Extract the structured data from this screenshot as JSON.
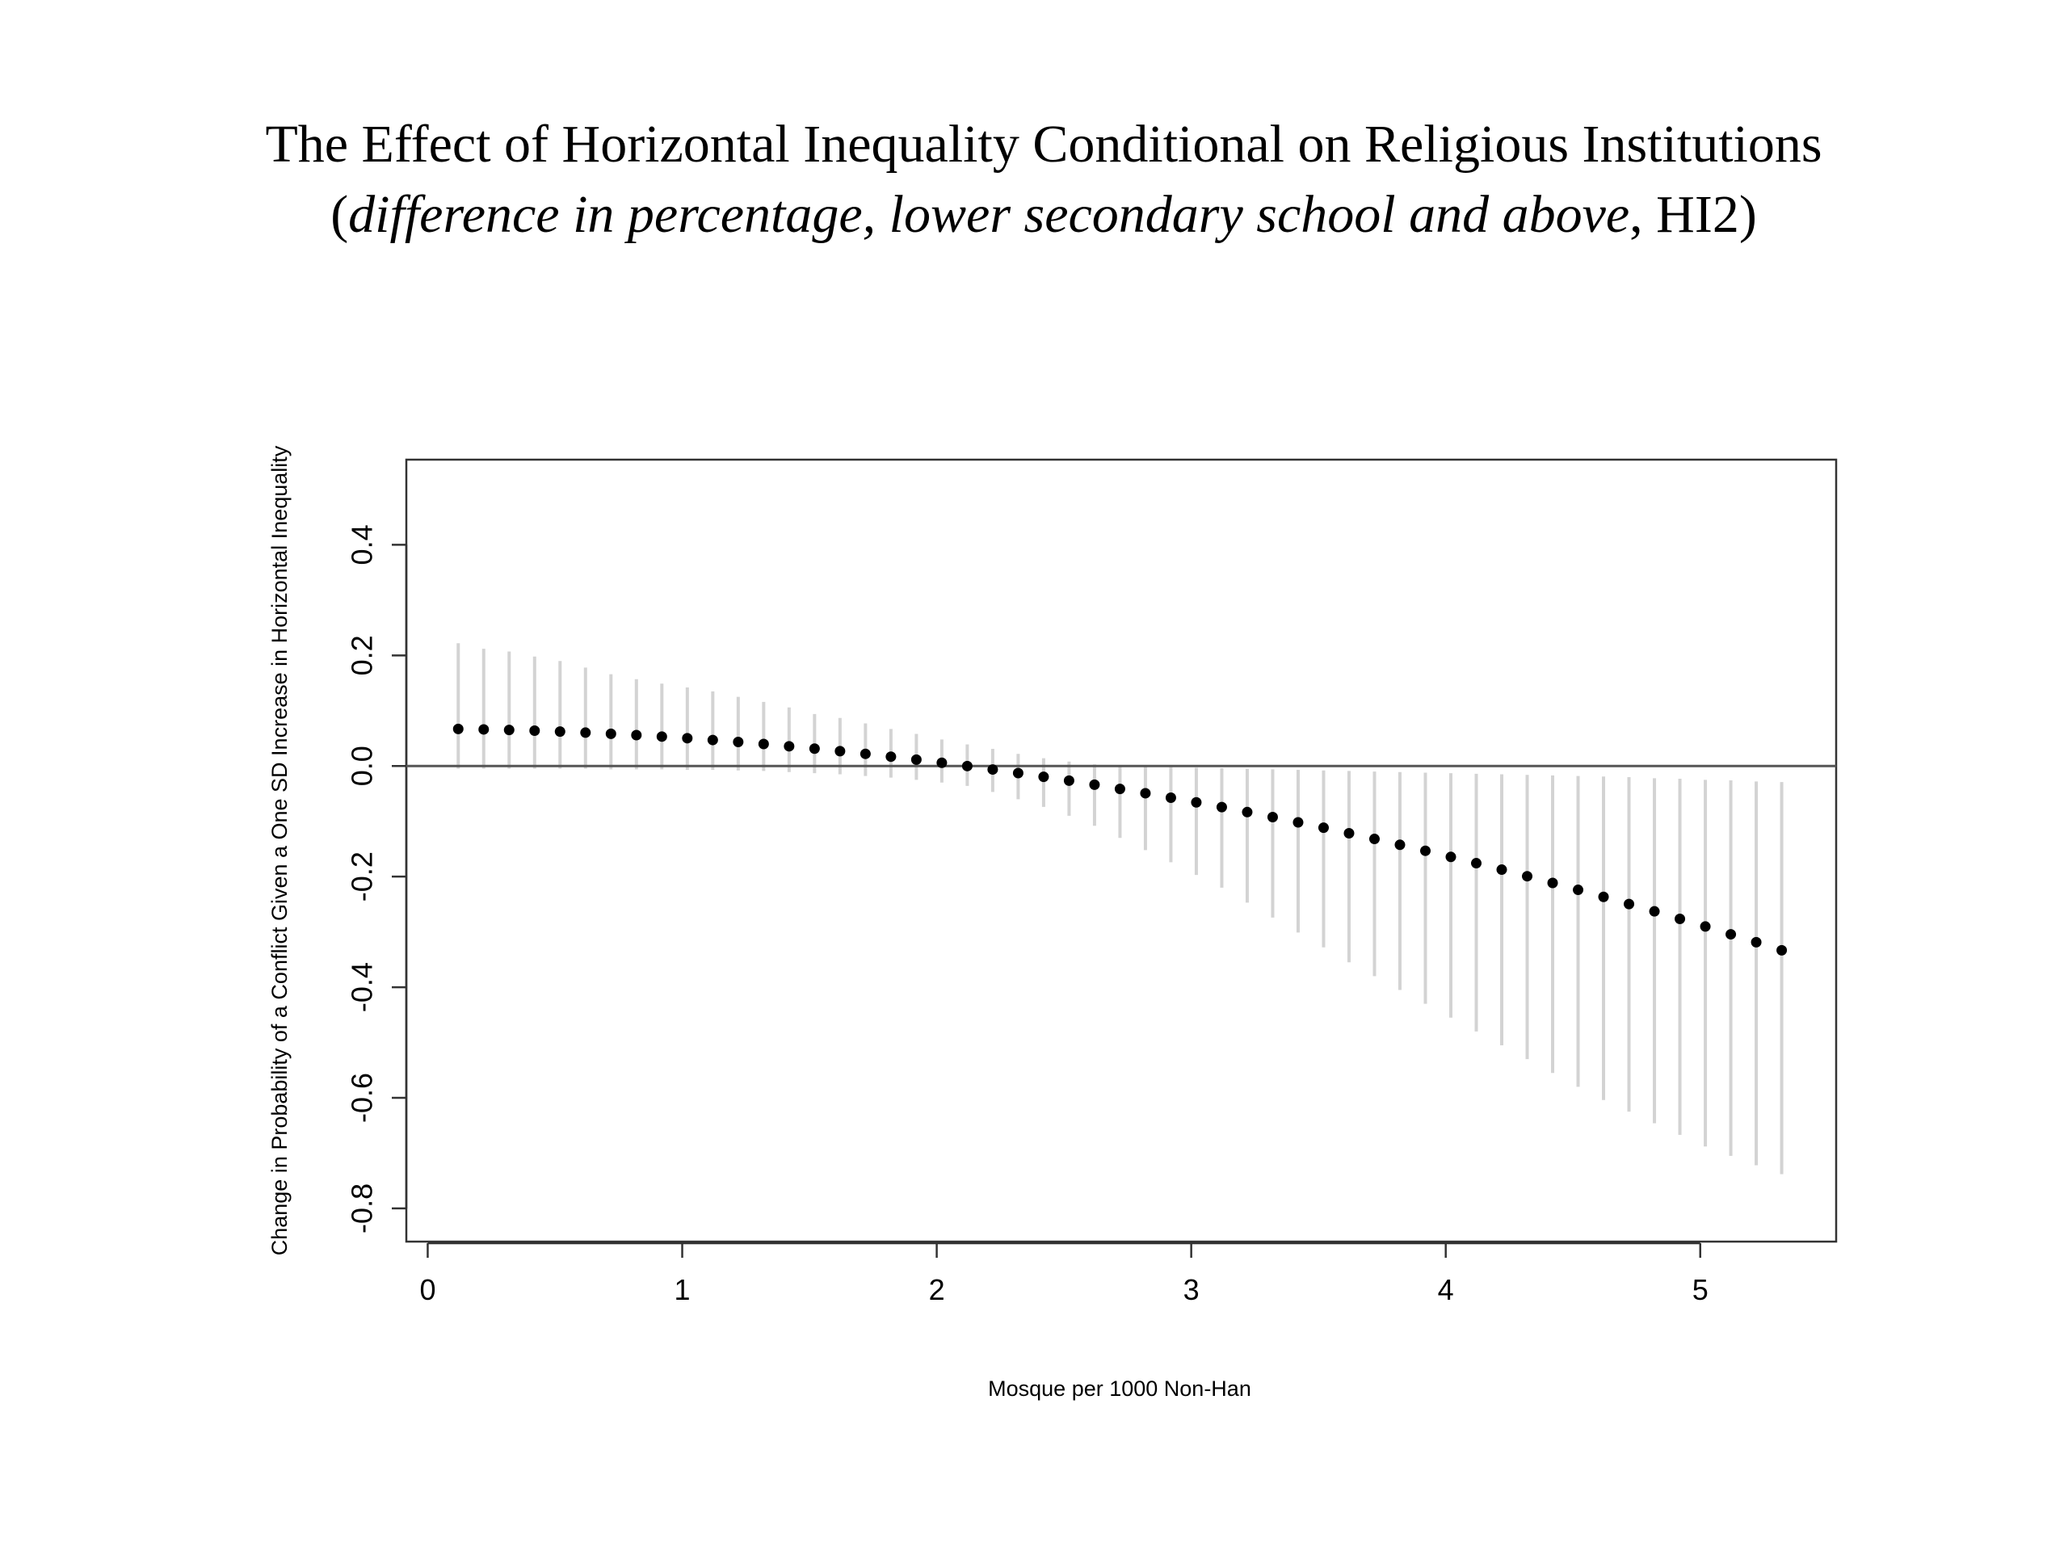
{
  "chart_data": {
    "type": "errorbar",
    "title": "The Effect of Horizontal Inequality Conditional on Religious Institutions",
    "subtitle": [
      "(",
      "difference in percentage, lower secondary school and above",
      ", HI2)"
    ],
    "x_label": "Mosque per 1000 Non-Han",
    "y_label": "Change in Probability of a Conflict Given a One SD Increase in Horizontal Inequality",
    "point_color": "#000000",
    "bar_color": "#d3d3d3",
    "reference_line": 0,
    "xlim": [
      -0.084,
      5.534
    ],
    "ylim": [
      -0.86,
      0.554
    ],
    "xticks": [
      0,
      1,
      2,
      3,
      4,
      5
    ],
    "yticks": [
      -0.8,
      -0.6,
      -0.4,
      -0.2,
      {
        "value": 0,
        "label": "0.0"
      },
      0.2,
      0.4
    ],
    "x": [
      0.12,
      0.22,
      0.32,
      0.42,
      0.52,
      0.62,
      0.72,
      0.82,
      0.92,
      1.02,
      1.12,
      1.22,
      1.32,
      1.42,
      1.52,
      1.62,
      1.72,
      1.82,
      1.92,
      2.02,
      2.12,
      2.22,
      2.32,
      2.42,
      2.52,
      2.62,
      2.72,
      2.82,
      2.92,
      3.02,
      3.12,
      3.22,
      3.32,
      3.42,
      3.52,
      3.62,
      3.72,
      3.82,
      3.92,
      4.02,
      4.12,
      4.22,
      4.32,
      4.42,
      4.52,
      4.62,
      4.72,
      4.82,
      4.92,
      5.02,
      5.12,
      5.22,
      5.32
    ],
    "values": [
      0.067,
      0.0662,
      0.0652,
      0.0639,
      0.0623,
      0.0604,
      0.0583,
      0.0559,
      0.0532,
      0.0503,
      0.047,
      0.0435,
      0.0398,
      0.0357,
      0.0314,
      0.0269,
      0.022,
      0.0169,
      0.0115,
      0.0059,
      -0.0001,
      -0.0063,
      -0.0128,
      -0.0195,
      -0.0265,
      -0.0338,
      -0.0414,
      -0.0492,
      -0.0573,
      -0.0657,
      -0.0743,
      -0.0833,
      -0.0924,
      -0.1019,
      -0.1116,
      -0.1216,
      -0.1319,
      -0.1425,
      -0.1533,
      -0.1644,
      -0.1757,
      -0.1874,
      -0.1993,
      -0.2114,
      -0.2239,
      -0.2366,
      -0.2496,
      -0.2628,
      -0.2764,
      -0.2902,
      -0.3043,
      -0.3186,
      -0.3332
    ],
    "lower": [
      -0.005,
      -0.005,
      -0.005,
      -0.005,
      -0.005,
      -0.005,
      -0.006,
      -0.006,
      -0.006,
      -0.007,
      -0.007,
      -0.008,
      -0.009,
      -0.011,
      -0.013,
      -0.015,
      -0.018,
      -0.021,
      -0.025,
      -0.03,
      -0.036,
      -0.047,
      -0.06,
      -0.074,
      -0.09,
      -0.108,
      -0.13,
      -0.152,
      -0.174,
      -0.197,
      -0.22,
      -0.247,
      -0.274,
      -0.301,
      -0.328,
      -0.355,
      -0.38,
      -0.405,
      -0.43,
      -0.455,
      -0.48,
      -0.505,
      -0.53,
      -0.555,
      -0.58,
      -0.604,
      -0.625,
      -0.646,
      -0.667,
      -0.688,
      -0.705,
      -0.722,
      -0.738
    ],
    "upper": [
      0.222,
      0.212,
      0.207,
      0.198,
      0.19,
      0.178,
      0.166,
      0.157,
      0.149,
      0.142,
      0.135,
      0.125,
      0.116,
      0.106,
      0.094,
      0.087,
      0.077,
      0.067,
      0.058,
      0.048,
      0.039,
      0.031,
      0.022,
      0.014,
      0.008,
      0.003,
      0,
      -0.001,
      -0.002,
      -0.003,
      -0.004,
      -0.005,
      -0.006,
      -0.007,
      -0.008,
      -0.009,
      -0.01,
      -0.011,
      -0.012,
      -0.013,
      -0.014,
      -0.015,
      -0.016,
      -0.017,
      -0.018,
      -0.019,
      -0.02,
      -0.022,
      -0.023,
      -0.025,
      -0.026,
      -0.028,
      -0.029
    ]
  }
}
